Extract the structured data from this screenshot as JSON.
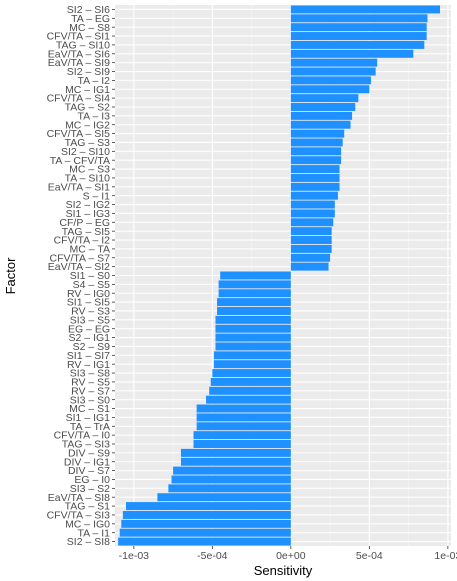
{
  "chart_data": {
    "type": "bar",
    "orientation": "horizontal",
    "xlabel": "Sensitivity",
    "ylabel": "Factor",
    "xlim": [
      -0.00112,
      0.00102
    ],
    "xticks": [
      -0.001,
      -0.0005,
      0,
      0.0005,
      0.001
    ],
    "xtick_labels": [
      "-1e-03",
      "-5e-04",
      "0e+00",
      "5e-04",
      "1e-03"
    ],
    "grid": true,
    "colors": {
      "bar": "#1E90FF",
      "panel": "#EBEBEB",
      "grid_major": "#FFFFFF",
      "grid_minor": "#F5F5F5"
    },
    "categories": [
      "SI2 – SI6",
      "TA – EG",
      "MC – S8",
      "CFV/TA – SI1",
      "TAG – SI10",
      "EaV/TA – SI6",
      "EaV/TA – SI9",
      "SI2 – SI9",
      "TA – I2",
      "MC – IG1",
      "CFV/TA – SI4",
      "TAG – S2",
      "TA – I3",
      "MC – IG2",
      "CFV/TA – SI5",
      "TAG – S3",
      "SI2 – SI10",
      "TA – CFV/TA",
      "MC – S3",
      "TA – SI10",
      "EaV/TA – SI1",
      "S – I1",
      "SI2 – IG2",
      "SI1 – IG3",
      "CF/P – EG",
      "TAG – SI5",
      "CFV/TA – I2",
      "MC – TA",
      "CFV/TA – S7",
      "EaV/TA – SI2",
      "SI1 – S0",
      "S4 – S5",
      "RV – IG0",
      "SI1 – SI5",
      "RV – S3",
      "SI3 – S5",
      "EG – EG",
      "S2 – IG1",
      "S2 – S9",
      "SI1 – SI7",
      "RV – IG1",
      "SI3 – S8",
      "RV – S5",
      "RV – S7",
      "SI3 – S0",
      "MC – S1",
      "SI1 – IG1",
      "TA – TrA",
      "CFV/TA – I0",
      "TAG – SI3",
      "DIV – S9",
      "DIV – IG1",
      "DIV – S7",
      "EG – I0",
      "SI3 – S2",
      "EaV/TA – SI8",
      "TAG – S1",
      "CFV/TA – SI3",
      "MC – IG0",
      "TA – I1",
      "SI2 – SI8"
    ],
    "values": [
      0.00095,
      0.00087,
      0.000865,
      0.000865,
      0.00085,
      0.00078,
      0.00055,
      0.00054,
      0.00051,
      0.0005,
      0.00043,
      0.00041,
      0.00039,
      0.00038,
      0.00034,
      0.00033,
      0.00032,
      0.00032,
      0.00031,
      0.00031,
      0.00031,
      0.0003,
      0.00028,
      0.00028,
      0.00027,
      0.00026,
      0.00026,
      0.00026,
      0.00025,
      0.00024,
      -0.00045,
      -0.00046,
      -0.00046,
      -0.00047,
      -0.00047,
      -0.00048,
      -0.00048,
      -0.00048,
      -0.00048,
      -0.00049,
      -0.00049,
      -0.0005,
      -0.00051,
      -0.00052,
      -0.00054,
      -0.0006,
      -0.0006,
      -0.0006,
      -0.00062,
      -0.00062,
      -0.0007,
      -0.0007,
      -0.00075,
      -0.00076,
      -0.00078,
      -0.00085,
      -0.00105,
      -0.00107,
      -0.00108,
      -0.00109,
      -0.0011
    ]
  }
}
